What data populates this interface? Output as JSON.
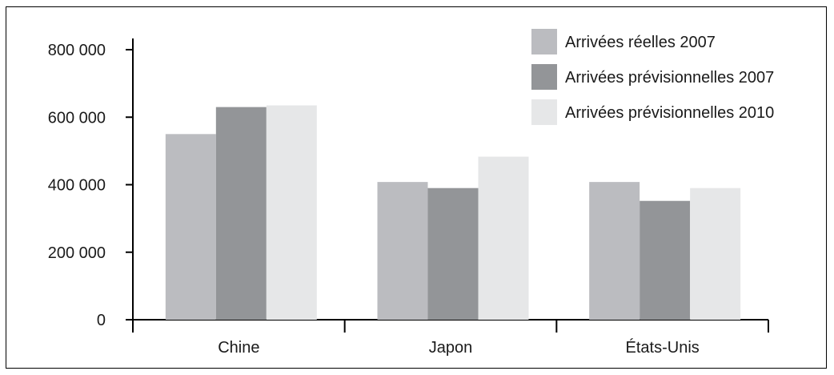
{
  "chart_data": {
    "type": "bar",
    "categories": [
      "Chine",
      "Japon",
      "États-Unis"
    ],
    "series": [
      {
        "name": "Arrivées réelles 2007",
        "values": [
          550000,
          408000,
          408000
        ],
        "color": "#bbbcc0"
      },
      {
        "name": "Arrivées prévisionnelles 2007",
        "values": [
          630000,
          390000,
          352000
        ],
        "color": "#939598"
      },
      {
        "name": "Arrivées prévisionnelles 2010",
        "values": [
          635000,
          483000,
          390000
        ],
        "color": "#e6e7e8"
      }
    ],
    "yticks": [
      "0",
      "200 000",
      "400 000",
      "600 000",
      "800 000"
    ],
    "ylim": [
      0,
      800000
    ],
    "title": "",
    "xlabel": "",
    "ylabel": "",
    "legend_position": "top-right",
    "grid": false
  }
}
